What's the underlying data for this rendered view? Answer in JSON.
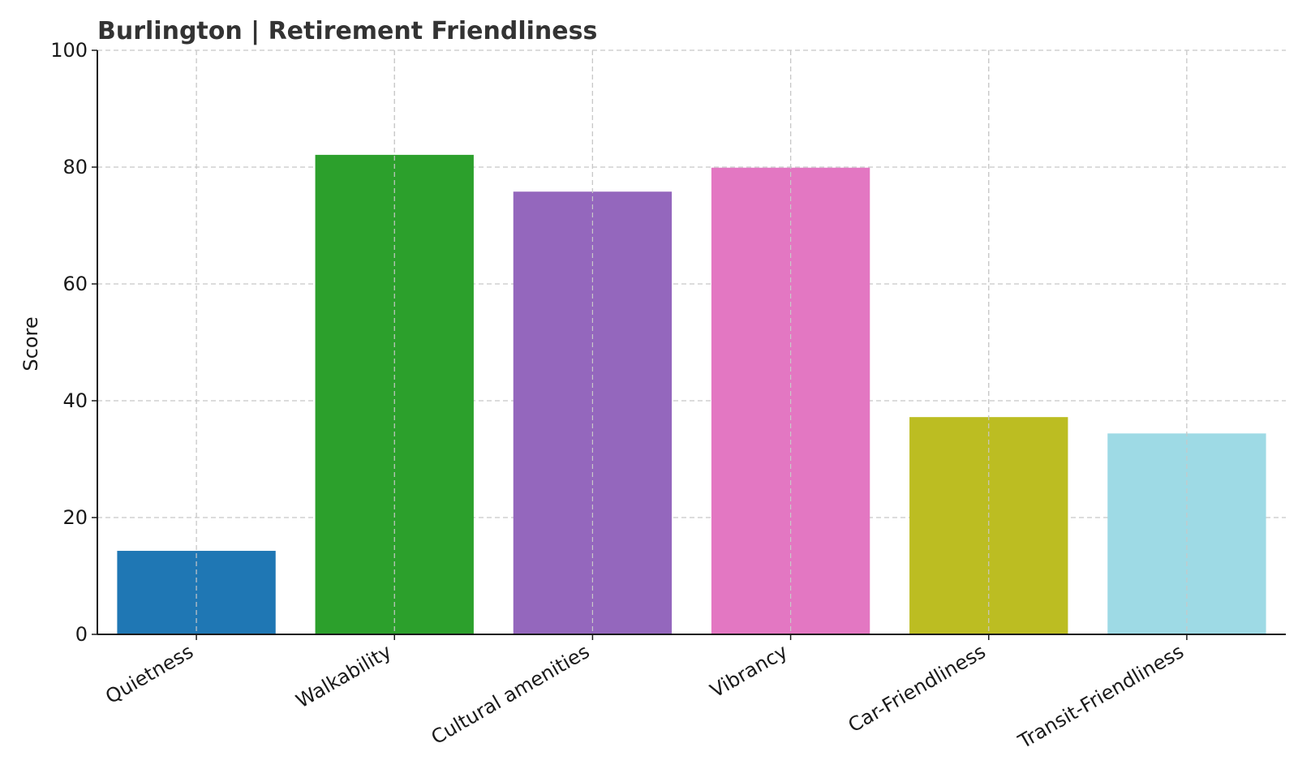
{
  "chart_data": {
    "type": "bar",
    "title": "Burlington | Retirement Friendliness",
    "xlabel": "",
    "ylabel": "Score",
    "ylim": [
      0,
      100
    ],
    "yticks": [
      0,
      20,
      40,
      60,
      80,
      100
    ],
    "grid": true,
    "categories": [
      "Quietness",
      "Walkability",
      "Cultural amenities",
      "Vibrancy",
      "Car-Friendliness",
      "Transit-Friendliness"
    ],
    "values": [
      14.3,
      82.1,
      75.8,
      79.9,
      37.2,
      34.4
    ],
    "colors": [
      "#1f77b4",
      "#2ca02c",
      "#9467bd",
      "#e377c2",
      "#bcbd22",
      "#9edae5"
    ]
  }
}
